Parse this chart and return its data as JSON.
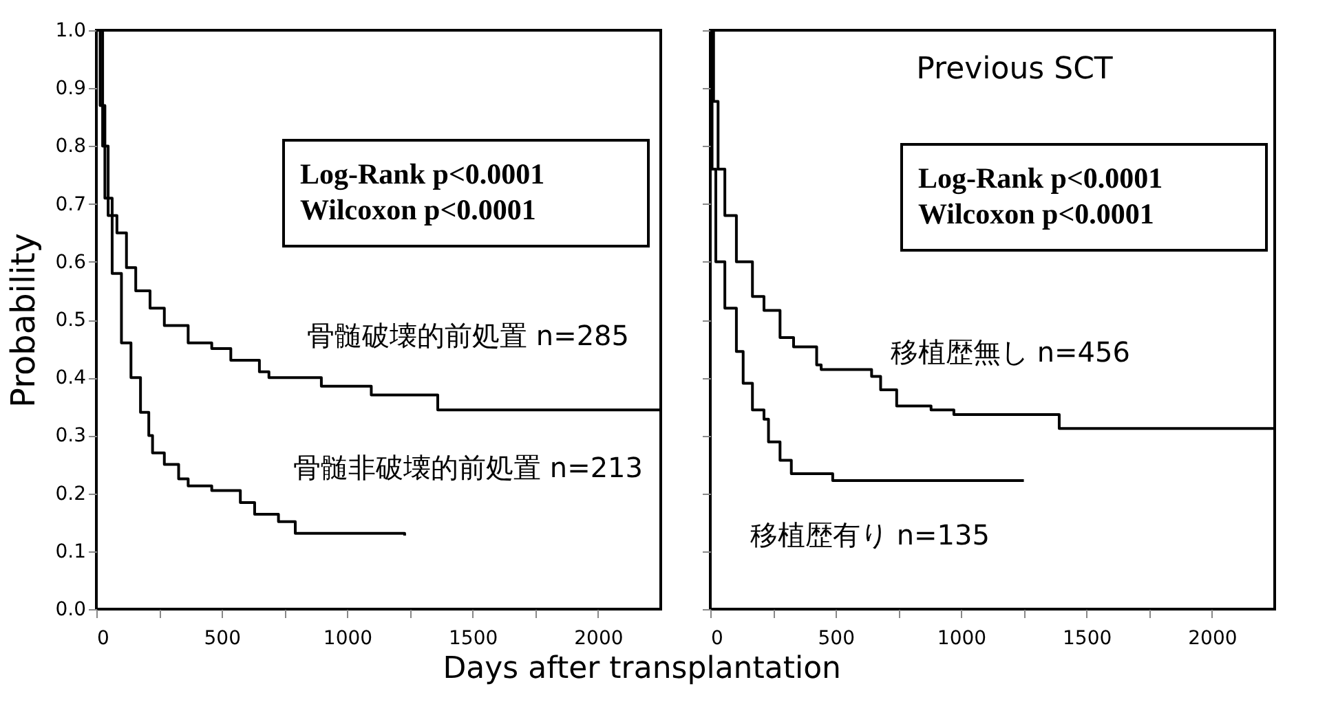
{
  "chart_data": [
    {
      "type": "step",
      "ylabel": "Probability",
      "xlabel": "Days after transplantation",
      "xlim": [
        0,
        2250
      ],
      "ylim": [
        0,
        1
      ],
      "xticks": [
        0,
        {
          "value": 250,
          "label": null
        },
        500,
        {
          "value": 750,
          "label": null
        },
        1000,
        {
          "value": 1250,
          "label": null
        },
        1500,
        {
          "value": 1750,
          "label": null
        },
        2000
      ],
      "yticks": [
        {
          "value": 0,
          "label": "0.0"
        },
        0.1,
        0.2,
        0.3,
        0.4,
        0.5,
        0.6,
        0.7,
        0.8,
        0.9,
        {
          "value": 1,
          "label": "1.0"
        }
      ],
      "annotations": [
        "Log-Rank   p<0.0001",
        "Wilcoxon   p<0.0001"
      ],
      "series": [
        {
          "name": "骨髄破壊的前処置 n=285",
          "color": "#000000",
          "x": [
            0,
            25,
            47,
            82,
            120,
            157,
            214,
            271,
            366,
            460,
            536,
            650,
            688,
            897,
            1096,
            1361,
            2250
          ],
          "values": [
            1.0,
            0.8,
            0.68,
            0.65,
            0.59,
            0.55,
            0.52,
            0.49,
            0.46,
            0.45,
            0.43,
            0.41,
            0.4,
            0.385,
            0.37,
            0.344,
            0.344
          ]
        },
        {
          "name": "骨髄非破壊的前処置 n=213",
          "color": "#000000",
          "x": [
            0,
            15,
            34,
            63,
            100,
            138,
            176,
            209,
            224,
            271,
            328,
            366,
            460,
            574,
            631,
            726,
            793,
            1229
          ],
          "values": [
            1.0,
            0.87,
            0.71,
            0.58,
            0.46,
            0.4,
            0.34,
            0.3,
            0.27,
            0.25,
            0.225,
            0.213,
            0.205,
            0.184,
            0.164,
            0.151,
            0.131,
            0.127
          ]
        }
      ]
    },
    {
      "type": "step",
      "title": "Previous SCT",
      "xlim": [
        0,
        2250
      ],
      "ylim": [
        0,
        1
      ],
      "xticks": [
        0,
        {
          "value": 250,
          "label": null
        },
        500,
        {
          "value": 750,
          "label": null
        },
        1000,
        {
          "value": 1250,
          "label": null
        },
        1500,
        {
          "value": 1750,
          "label": null
        },
        2000
      ],
      "yticks": [
        0.0,
        0.1,
        0.2,
        0.3,
        0.4,
        0.5,
        0.6,
        0.7,
        0.8,
        0.9,
        1.0
      ],
      "tick_labels": "x",
      "annotations": [
        "Log-Rank   p<0.0001",
        "Wilcoxon   p<0.0001"
      ],
      "series": [
        {
          "name": "移植歴無し n=456",
          "color": "#000000",
          "x": [
            0,
            13,
            31,
            58,
            104,
            168,
            214,
            278,
            332,
            424,
            442,
            643,
            679,
            743,
            880,
            971,
            1391,
            2250
          ],
          "values": [
            1.0,
            0.877,
            0.76,
            0.68,
            0.6,
            0.54,
            0.516,
            0.469,
            0.453,
            0.422,
            0.414,
            0.402,
            0.379,
            0.351,
            0.344,
            0.336,
            0.312,
            0.312
          ]
        },
        {
          "name": "移植歴有り n=135",
          "color": "#000000",
          "x": [
            0,
            7,
            22,
            58,
            104,
            131,
            168,
            214,
            232,
            278,
            323,
            488,
            1250
          ],
          "values": [
            1.0,
            0.76,
            0.6,
            0.52,
            0.445,
            0.39,
            0.344,
            0.328,
            0.289,
            0.257,
            0.234,
            0.222,
            0.222
          ]
        }
      ]
    }
  ]
}
